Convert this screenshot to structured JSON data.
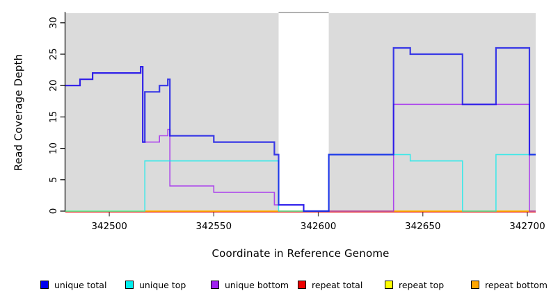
{
  "chart_data": {
    "type": "line",
    "subtype": "step-coverage-plot",
    "title": "",
    "xlabel": "Coordinate in Reference Genome",
    "ylabel": "Read Coverage Depth",
    "xlim": [
      342479,
      342704
    ],
    "ylim": [
      0,
      31.75
    ],
    "xticks": [
      342500,
      342550,
      342600,
      342650,
      342700
    ],
    "yticks": [
      0,
      5,
      10,
      15,
      20,
      25,
      30
    ],
    "grid": "off",
    "plot_bg": "#DBDBDB",
    "unshaded_region": [
      342581,
      342605
    ],
    "series": [
      {
        "name": "repeat total",
        "color": "#E00000",
        "width": 1.4,
        "opacity": 1,
        "steps": [
          [
            342479,
            0
          ]
        ],
        "x_end": 342704
      },
      {
        "name": "repeat top",
        "color": "#FFFF00",
        "width": 1.4,
        "opacity": 1,
        "steps": [
          [
            342479,
            0
          ]
        ],
        "x_end": 342704
      },
      {
        "name": "repeat bottom",
        "color": "#FFA500",
        "width": 1.4,
        "opacity": 1,
        "steps": [
          [
            342517,
            0
          ]
        ],
        "x_end": 342704
      },
      {
        "name": "unique bottom",
        "color": "#A020F0",
        "width": 1.6,
        "opacity": 0.8,
        "steps": [
          [
            342479,
            20
          ],
          [
            342486,
            21
          ],
          [
            342492,
            22
          ],
          [
            342515,
            23
          ],
          [
            342516,
            11
          ],
          [
            342524,
            12
          ],
          [
            342528,
            13
          ],
          [
            342529,
            4
          ],
          [
            342550,
            3
          ],
          [
            342579,
            1
          ],
          [
            342593,
            0
          ],
          [
            342636,
            17
          ],
          [
            342701,
            0
          ]
        ],
        "x_end": 342704
      },
      {
        "name": "unique top",
        "color": "#00EEEE",
        "width": 1.6,
        "opacity": 0.7,
        "steps": [
          [
            342479,
            0
          ],
          [
            342517,
            8
          ],
          [
            342581,
            0
          ],
          [
            342605,
            9
          ],
          [
            342644,
            8
          ],
          [
            342669,
            0
          ],
          [
            342685,
            9
          ]
        ],
        "x_end": 342704
      },
      {
        "name": "unique total",
        "color": "#0F0FE8",
        "width": 2.2,
        "opacity": 0.8,
        "steps": [
          [
            342479,
            20
          ],
          [
            342486,
            21
          ],
          [
            342492,
            22
          ],
          [
            342515,
            23
          ],
          [
            342516,
            11
          ],
          [
            342517,
            19
          ],
          [
            342524,
            20
          ],
          [
            342528,
            21
          ],
          [
            342529,
            12
          ],
          [
            342550,
            11
          ],
          [
            342579,
            9
          ],
          [
            342581,
            1
          ],
          [
            342593,
            0
          ],
          [
            342605,
            9
          ],
          [
            342636,
            26
          ],
          [
            342644,
            25
          ],
          [
            342669,
            17
          ],
          [
            342685,
            26
          ],
          [
            342701,
            9
          ]
        ],
        "x_end": 342704
      }
    ],
    "legend": [
      {
        "label": "unique total",
        "color": "#0000EE"
      },
      {
        "label": "unique top",
        "color": "#00EEEE"
      },
      {
        "label": "unique bottom",
        "color": "#A020F0"
      },
      {
        "label": "repeat total",
        "color": "#EE0000"
      },
      {
        "label": "repeat top",
        "color": "#FFFF00"
      },
      {
        "label": "repeat bottom",
        "color": "#FFA500"
      }
    ],
    "legend_position": "bottom"
  }
}
